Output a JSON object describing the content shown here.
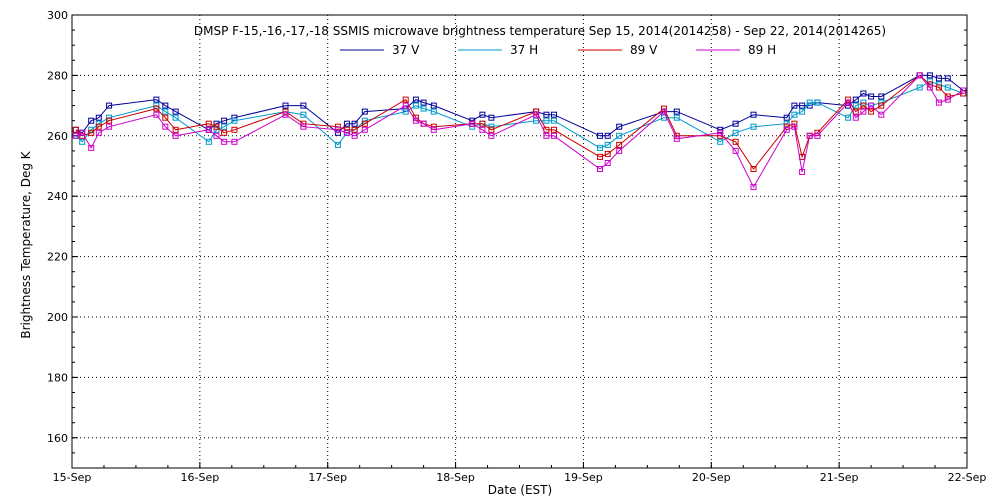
{
  "chart_data": {
    "type": "line",
    "title": "DMSP F-15,-16,-17,-18 SSMIS microwave brightness temperature Sep 15, 2014(2014258) - Sep 22, 2014(2014265)",
    "xlabel": "Date (EST)",
    "ylabel": "Brightness Temperature, Deg K",
    "ylim": [
      150,
      300
    ],
    "xlim": [
      0,
      7
    ],
    "yticks": [
      160,
      180,
      200,
      220,
      240,
      260,
      280,
      300
    ],
    "xtick_labels": [
      "15-Sep",
      "16-Sep",
      "17-Sep",
      "18-Sep",
      "19-Sep",
      "20-Sep",
      "21-Sep",
      "22-Sep"
    ],
    "grid": true,
    "legend_position": "top",
    "x": [
      0.03,
      0.08,
      0.15,
      0.21,
      0.29,
      0.66,
      0.73,
      0.81,
      1.07,
      1.13,
      1.19,
      1.27,
      1.67,
      1.81,
      2.08,
      2.15,
      2.21,
      2.29,
      2.61,
      2.69,
      2.75,
      2.83,
      3.13,
      3.21,
      3.28,
      3.63,
      3.71,
      3.77,
      4.13,
      4.19,
      4.28,
      4.63,
      4.73,
      5.07,
      5.19,
      5.33,
      5.59,
      5.65,
      5.71,
      5.77,
      5.83,
      6.07,
      6.13,
      6.19,
      6.25,
      6.33,
      6.63,
      6.71,
      6.78,
      6.85,
      6.97
    ],
    "series": [
      {
        "name": "37 V",
        "color": "#000099",
        "values": [
          262,
          261,
          265,
          266,
          270,
          272,
          270,
          268,
          262,
          264,
          265,
          266,
          270,
          270,
          261,
          264,
          264,
          268,
          269,
          272,
          271,
          270,
          265,
          267,
          266,
          268,
          267,
          267,
          260,
          260,
          263,
          268,
          268,
          262,
          264,
          267,
          266,
          270,
          270,
          270,
          271,
          270,
          272,
          274,
          273,
          273,
          280,
          280,
          279,
          279,
          275
        ]
      },
      {
        "name": "37 H",
        "color": "#0099cc",
        "values": [
          260,
          258,
          262,
          264,
          266,
          270,
          268,
          266,
          258,
          262,
          263,
          265,
          268,
          267,
          257,
          261,
          262,
          265,
          268,
          270,
          269,
          268,
          263,
          264,
          263,
          265,
          265,
          265,
          256,
          257,
          260,
          266,
          266,
          258,
          261,
          263,
          264,
          267,
          268,
          271,
          271,
          266,
          270,
          271,
          270,
          271,
          276,
          278,
          277,
          276,
          274
        ]
      },
      {
        "name": "89 V",
        "color": "#cc0000",
        "values": [
          262,
          260,
          261,
          263,
          265,
          269,
          266,
          262,
          264,
          263,
          261,
          262,
          268,
          264,
          263,
          262,
          262,
          264,
          272,
          266,
          264,
          263,
          264,
          264,
          262,
          268,
          262,
          262,
          253,
          254,
          257,
          269,
          260,
          260,
          258,
          249,
          263,
          264,
          253,
          260,
          261,
          272,
          268,
          270,
          268,
          270,
          280,
          277,
          276,
          273,
          274
        ]
      },
      {
        "name": "89 H",
        "color": "#cc00cc",
        "values": [
          260,
          261,
          256,
          261,
          263,
          267,
          263,
          260,
          262,
          260,
          258,
          258,
          267,
          263,
          262,
          261,
          260,
          262,
          270,
          265,
          264,
          262,
          264,
          262,
          260,
          267,
          260,
          260,
          249,
          251,
          255,
          268,
          259,
          261,
          255,
          243,
          262,
          263,
          248,
          260,
          260,
          271,
          266,
          268,
          270,
          267,
          280,
          276,
          271,
          272,
          275
        ]
      }
    ]
  }
}
